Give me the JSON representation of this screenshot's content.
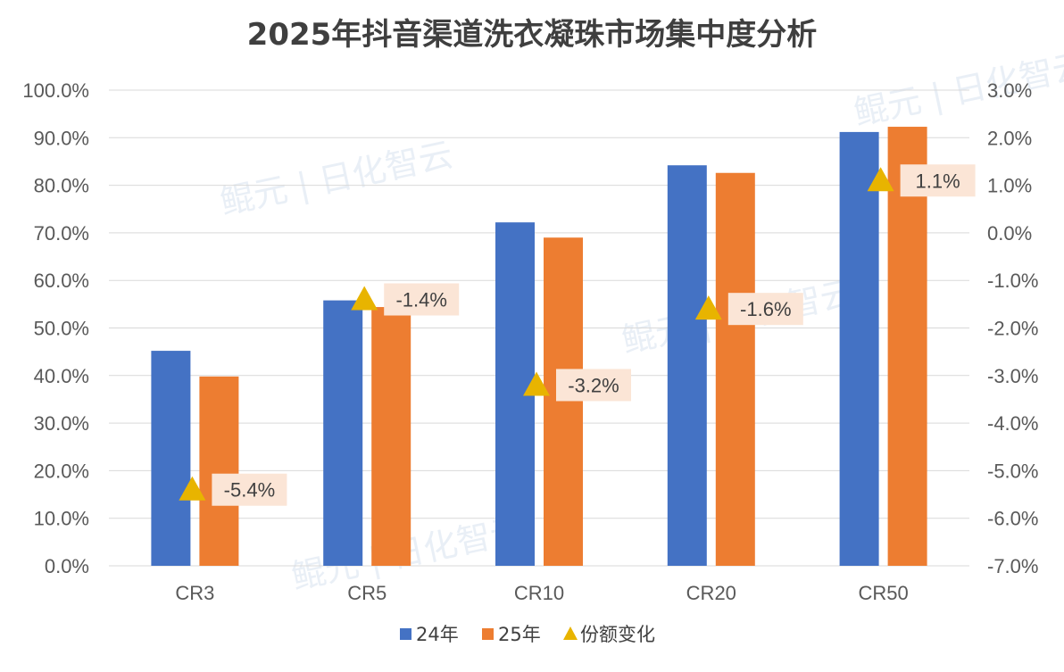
{
  "chart_data": {
    "type": "bar",
    "title": "2025年抖音渠道洗衣凝珠市场集中度分析",
    "categories": [
      "CR3",
      "CR5",
      "CR10",
      "CR20",
      "CR50"
    ],
    "series": [
      {
        "name": "24年",
        "color": "#4472c4",
        "values": [
          45.2,
          55.8,
          72.2,
          84.2,
          91.2
        ]
      },
      {
        "name": "25年",
        "color": "#ed7d31",
        "values": [
          39.8,
          54.4,
          69.0,
          82.6,
          92.3
        ]
      }
    ],
    "change_series": {
      "name": "份额变化",
      "color": "#e8b400",
      "values": [
        -5.4,
        -1.4,
        -3.2,
        -1.6,
        1.1
      ],
      "labels": [
        "-5.4%",
        "-1.4%",
        "-3.2%",
        "-1.6%",
        "1.1%"
      ],
      "label_bg": "#fbe5d6"
    },
    "y_left": {
      "min": 0,
      "max": 100,
      "step": 10,
      "ticks": [
        "0.0%",
        "10.0%",
        "20.0%",
        "30.0%",
        "40.0%",
        "50.0%",
        "60.0%",
        "70.0%",
        "80.0%",
        "90.0%",
        "100.0%"
      ]
    },
    "y_right": {
      "min": -7,
      "max": 3,
      "step": 1,
      "ticks": [
        "-7.0%",
        "-6.0%",
        "-5.0%",
        "-4.0%",
        "-3.0%",
        "-2.0%",
        "-1.0%",
        "0.0%",
        "1.0%",
        "2.0%",
        "3.0%"
      ]
    },
    "grid": true,
    "legend_position": "bottom",
    "watermark": "鲲元 | 日化智云"
  }
}
